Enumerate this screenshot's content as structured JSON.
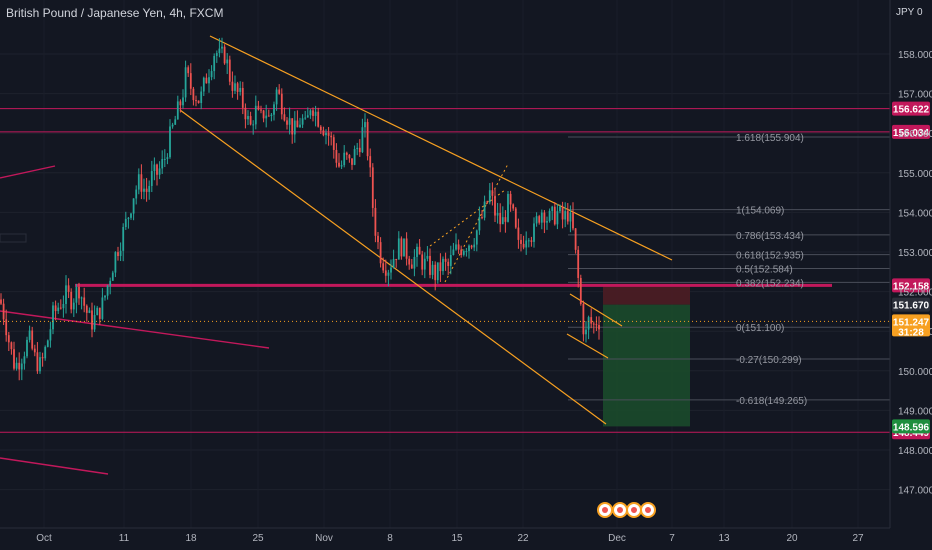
{
  "header": {
    "title": "British Pound / Japanese Yen, 4h, FXCM",
    "currency": "JPY 0"
  },
  "chart_data": {
    "type": "candlestick",
    "symbol": "GBPJPY",
    "timeframe": "4h",
    "ylim": [
      146.0,
      158.6
    ],
    "y_ticks": [
      147.0,
      148.0,
      149.0,
      150.0,
      151.0,
      152.0,
      153.0,
      154.0,
      155.0,
      156.0,
      157.0,
      158.0
    ],
    "x_tick_labels": [
      "Oct",
      "11",
      "18",
      "25",
      "Nov",
      "8",
      "15",
      "22",
      "Dec",
      "7",
      "13",
      "20",
      "27"
    ],
    "price_path": [
      [
        0,
        151.8
      ],
      [
        5,
        151.3
      ],
      [
        10,
        150.6
      ],
      [
        15,
        150.1
      ],
      [
        22,
        150.4
      ],
      [
        29,
        150.8
      ],
      [
        35,
        150.3
      ],
      [
        41,
        150.1
      ],
      [
        47,
        150.7
      ],
      [
        53,
        151.4
      ],
      [
        60,
        151.7
      ],
      [
        66,
        151.9
      ],
      [
        72,
        151.8
      ],
      [
        79,
        152.1
      ],
      [
        85,
        151.6
      ],
      [
        91,
        151.2
      ],
      [
        97,
        151.4
      ],
      [
        103,
        151.7
      ],
      [
        109,
        152.3
      ],
      [
        115,
        152.9
      ],
      [
        122,
        153.4
      ],
      [
        128,
        153.9
      ],
      [
        134,
        154.5
      ],
      [
        140,
        154.8
      ],
      [
        146,
        154.5
      ],
      [
        152,
        154.9
      ],
      [
        158,
        155.0
      ],
      [
        164,
        155.3
      ],
      [
        170,
        155.9
      ],
      [
        176,
        156.4
      ],
      [
        182,
        156.9
      ],
      [
        186,
        157.5
      ],
      [
        190,
        157.2
      ],
      [
        195,
        157.0
      ],
      [
        200,
        156.8
      ],
      [
        205,
        157.3
      ],
      [
        210,
        157.7
      ],
      [
        215,
        158.1
      ],
      [
        220,
        157.9
      ],
      [
        225,
        158.0
      ],
      [
        230,
        157.4
      ],
      [
        235,
        157.1
      ],
      [
        240,
        156.9
      ],
      [
        245,
        156.6
      ],
      [
        250,
        156.1
      ],
      [
        255,
        156.6
      ],
      [
        260,
        156.3
      ],
      [
        265,
        156.6
      ],
      [
        270,
        156.3
      ],
      [
        276,
        157.1
      ],
      [
        281,
        156.8
      ],
      [
        286,
        156.5
      ],
      [
        291,
        156.2
      ],
      [
        296,
        156.0
      ],
      [
        301,
        156.4
      ],
      [
        306,
        156.1
      ],
      [
        311,
        156.8
      ],
      [
        316,
        156.5
      ],
      [
        320,
        156.3
      ],
      [
        325,
        156.1
      ],
      [
        330,
        155.9
      ],
      [
        335,
        155.5
      ],
      [
        340,
        155.1
      ],
      [
        345,
        155.4
      ],
      [
        350,
        155.2
      ],
      [
        355,
        155.5
      ],
      [
        360,
        155.8
      ],
      [
        364,
        156.2
      ],
      [
        368,
        155.5
      ],
      [
        371,
        154.7
      ],
      [
        374,
        153.8
      ],
      [
        378,
        153.2
      ],
      [
        382,
        152.8
      ],
      [
        388,
        152.6
      ],
      [
        394,
        152.9
      ],
      [
        400,
        153.2
      ],
      [
        406,
        153.0
      ],
      [
        412,
        152.8
      ],
      [
        418,
        152.9
      ],
      [
        424,
        152.7
      ],
      [
        430,
        152.6
      ],
      [
        436,
        152.4
      ],
      [
        442,
        152.7
      ],
      [
        448,
        152.6
      ],
      [
        454,
        153.0
      ],
      [
        460,
        153.1
      ],
      [
        466,
        153.2
      ],
      [
        472,
        153.3
      ],
      [
        478,
        153.6
      ],
      [
        484,
        154.0
      ],
      [
        490,
        154.5
      ],
      [
        496,
        153.9
      ],
      [
        502,
        153.7
      ],
      [
        508,
        154.2
      ],
      [
        513,
        153.9
      ],
      [
        518,
        153.1
      ],
      [
        523,
        153.3
      ],
      [
        528,
        153.6
      ],
      [
        533,
        153.4
      ],
      [
        538,
        153.9
      ],
      [
        543,
        154.1
      ],
      [
        548,
        153.8
      ],
      [
        553,
        153.9
      ],
      [
        558,
        154.0
      ],
      [
        563,
        153.8
      ],
      [
        568,
        154.0
      ],
      [
        573,
        153.5
      ],
      [
        577,
        152.6
      ],
      [
        581,
        151.6
      ],
      [
        585,
        150.8
      ],
      [
        589,
        151.3
      ],
      [
        593,
        151.1
      ],
      [
        597,
        151.3
      ],
      [
        600,
        151.25
      ]
    ],
    "horizontal_levels": [
      {
        "price": 156.622,
        "label": "156.622",
        "color": "#c2185b"
      },
      {
        "price": 156.034,
        "label": "156.034",
        "color": "#c2185b"
      },
      {
        "price": 152.158,
        "label": "152.158",
        "color": "#c2185b"
      },
      {
        "price": 148.449,
        "label": "148.449",
        "color": "#c2185b"
      }
    ],
    "fibonacci": [
      {
        "ratio": "1.618",
        "price": 155.904,
        "label": "1.618(155.904)"
      },
      {
        "ratio": "1",
        "price": 154.069,
        "label": "1(154.069)"
      },
      {
        "ratio": "0.786",
        "price": 153.434,
        "label": "0.786(153.434)"
      },
      {
        "ratio": "0.618",
        "price": 152.935,
        "label": "0.618(152.935)"
      },
      {
        "ratio": "0.5",
        "price": 152.584,
        "label": "0.5(152.584)"
      },
      {
        "ratio": "0.382",
        "price": 152.234,
        "label": "0.382(152.234)"
      },
      {
        "ratio": "0",
        "price": 151.1,
        "label": "0(151.100)"
      },
      {
        "ratio": "-0.27",
        "price": 150.299,
        "label": "-0.27(150.299)"
      },
      {
        "ratio": "-0.618",
        "price": 149.265,
        "label": "-0.618(149.265)"
      }
    ],
    "position": {
      "type": "short",
      "entry": 151.67,
      "stop": 152.158,
      "target": 148.596,
      "entry_label": "151.670",
      "target_label": "148.596"
    },
    "current_price": {
      "price": 151.247,
      "label": "151.247",
      "countdown": "31:28"
    },
    "hidden_tag_label": "152.000",
    "colors": {
      "background": "#131722",
      "up": "#26a69a",
      "down": "#ef5350",
      "trendline": "#f7a021",
      "level": "#c2185b",
      "profit_zone": "#1b4d2c",
      "loss_zone": "#4a1c24"
    }
  }
}
